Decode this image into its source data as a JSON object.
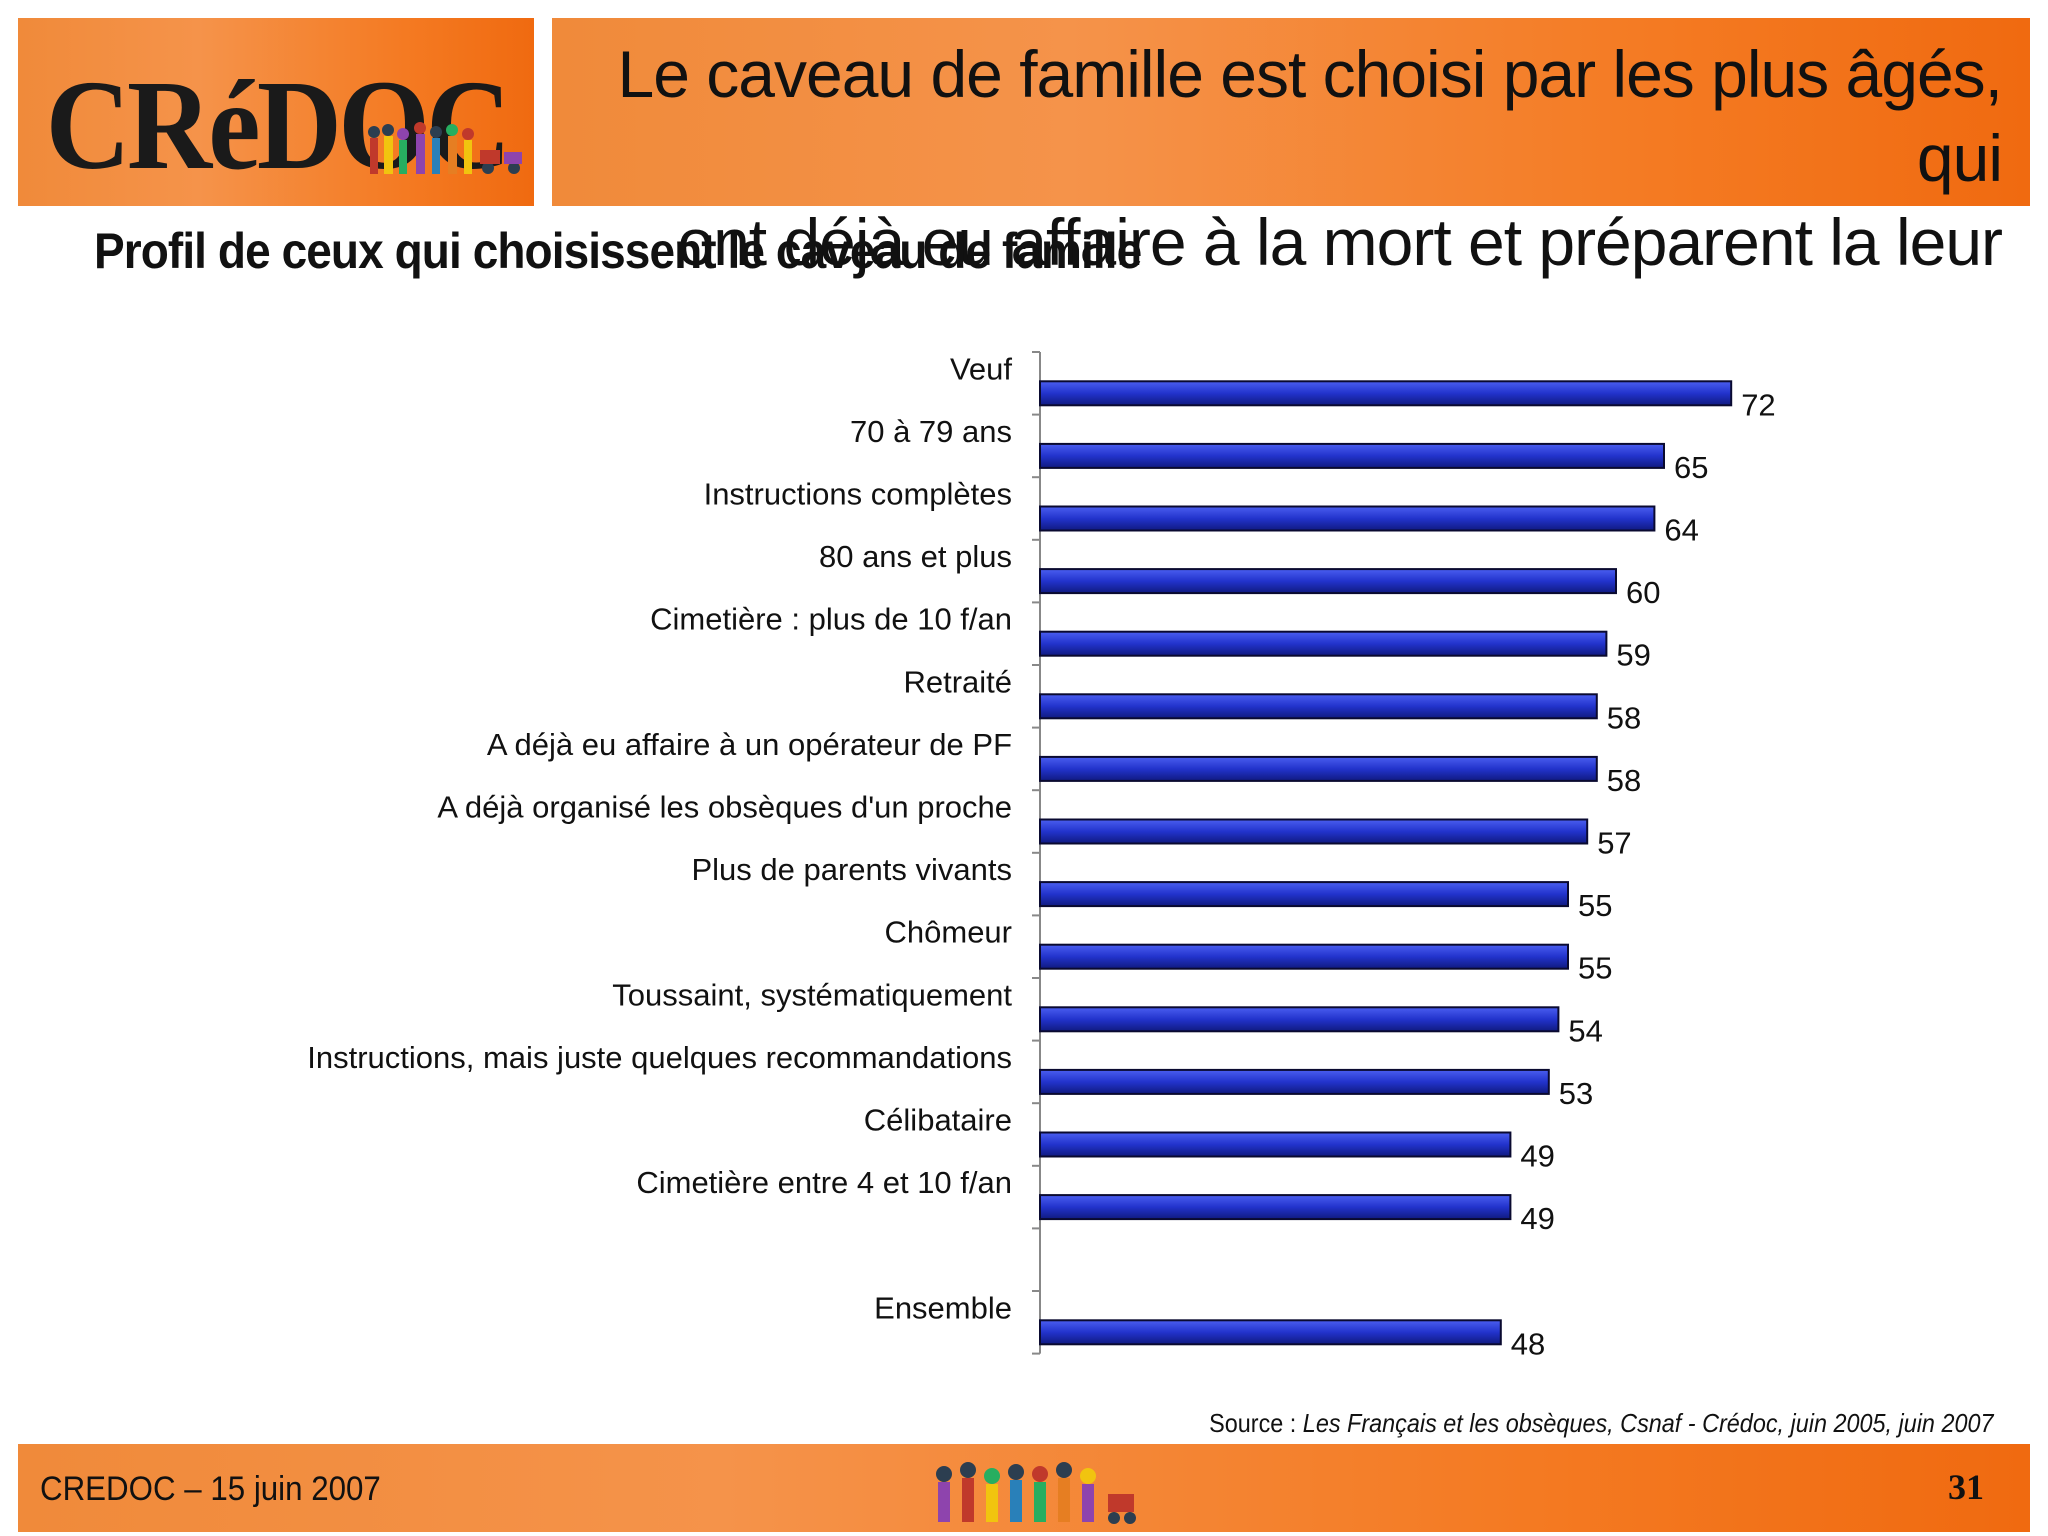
{
  "header": {
    "logo_text": "CRéDOC",
    "title_line1": "Le caveau de famille est choisi par les plus âgés, qui",
    "title_line2": "ont déjà eu affaire à la mort et préparent la leur"
  },
  "subtitle": "Profil de ceux qui choisissent le caveau de famille",
  "chart_data": {
    "type": "bar",
    "orientation": "horizontal",
    "categories": [
      "Veuf",
      "70 à 79 ans",
      "Instructions complètes",
      "80 ans et plus",
      "Cimetière : plus de 10 f/an",
      "Retraité",
      "A déjà eu affaire à un opérateur de PF",
      "A déjà organisé les obsèques d'un proche",
      "Plus de parents vivants",
      "Chômeur",
      "Toussaint, systématiquement",
      "Instructions, mais juste quelques recommandations",
      "Célibataire",
      "Cimetière entre 4 et 10 f/an",
      "",
      "Ensemble"
    ],
    "values": [
      72,
      65,
      64,
      60,
      59,
      58,
      58,
      57,
      55,
      55,
      54,
      53,
      49,
      49,
      null,
      48
    ],
    "value_labels": [
      "72",
      "65",
      "64",
      "60",
      "59",
      "58",
      "58",
      "57",
      "55",
      "55",
      "54",
      "53",
      "49",
      "49",
      "",
      "48"
    ],
    "bar_color": "#2233cc",
    "data_labels": true,
    "grid": false
  },
  "source": {
    "prefix": "Source : ",
    "text": "Les Français et les obsèques, Csnaf - Crédoc, juin 2005, juin 2007"
  },
  "footer": {
    "left": "CREDOC – 15 juin 2007",
    "page_number": "31"
  },
  "colors": {
    "accent_orange": "#f47a22",
    "bar_blue": "#2233cc"
  }
}
